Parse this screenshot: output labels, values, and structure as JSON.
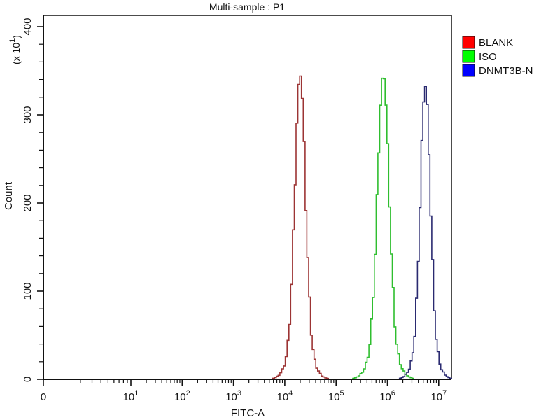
{
  "window": {
    "background": "#ffffff"
  },
  "chart_data": {
    "type": "line",
    "subtype": "flow-cytometry-histogram-overlay",
    "title": "Multi-sample : P1",
    "xlabel": "FITC-A",
    "ylabel": "Count",
    "y_unit_multiplier": "(x 10^1)",
    "x_scale": "biexponential: 0 origin, then log decades 10^1 to 10^7",
    "x_ticks": [
      "0",
      "10^1",
      "10^2",
      "10^3",
      "10^4",
      "10^5",
      "10^6",
      "10^7"
    ],
    "y_ticks": [
      "0",
      "100",
      "200",
      "300",
      "400"
    ],
    "y_minor_step": 20,
    "ylim": [
      0,
      413
    ],
    "grid": "off",
    "legend_position": "top-right-outside",
    "series": [
      {
        "name": "BLANK",
        "legend_color": "#ff0000",
        "curve_color": "#9c3434",
        "peak_x": 20000,
        "peak_x_log10": 4.3,
        "peak_count_axis_units": 345,
        "approx_span_log10": [
          3.75,
          4.85
        ],
        "sigma_core_decades": 0.1,
        "sigma_tail_decades": 0.19,
        "tail_fraction": 0.15
      },
      {
        "name": "ISO",
        "legend_color": "#00ff00",
        "curve_color": "#2fbe2f",
        "peak_x": 830000,
        "peak_x_log10": 5.92,
        "peak_count_axis_units": 345,
        "approx_span_log10": [
          5.35,
          6.53
        ],
        "sigma_core_decades": 0.11,
        "sigma_tail_decades": 0.21,
        "tail_fraction": 0.15
      },
      {
        "name": "DNMT3B-N",
        "legend_color": "#0000ff",
        "curve_color": "#2a2a70",
        "peak_x": 5500000,
        "peak_x_log10": 6.74,
        "peak_count_axis_units": 332,
        "approx_span_log10": [
          6.2,
          7.26
        ],
        "sigma_core_decades": 0.095,
        "sigma_tail_decades": 0.18,
        "tail_fraction": 0.15
      }
    ]
  },
  "colors": {
    "axis": "#111111",
    "text": "#111111",
    "background": "#ffffff"
  }
}
